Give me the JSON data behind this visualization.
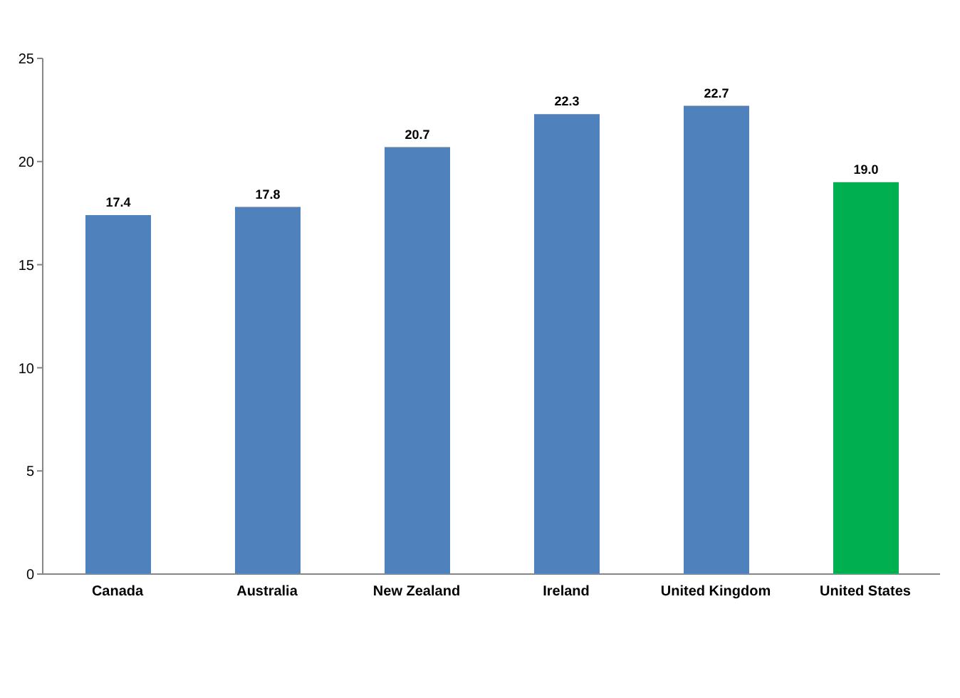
{
  "chart_data": {
    "type": "bar",
    "categories": [
      "Canada",
      "Australia",
      "New Zealand",
      "Ireland",
      "United Kingdom",
      "United States"
    ],
    "values": [
      17.4,
      17.8,
      20.7,
      22.3,
      22.7,
      19.0
    ],
    "value_labels": [
      "17.4",
      "17.8",
      "20.7",
      "22.3",
      "22.7",
      "19.0"
    ],
    "colors": [
      "#4f81bd",
      "#4f81bd",
      "#4f81bd",
      "#4f81bd",
      "#4f81bd",
      "#00b050"
    ],
    "ylim": [
      0,
      25
    ],
    "yticks": [
      0,
      5,
      10,
      15,
      20,
      25
    ],
    "grid": false,
    "legend": false
  }
}
